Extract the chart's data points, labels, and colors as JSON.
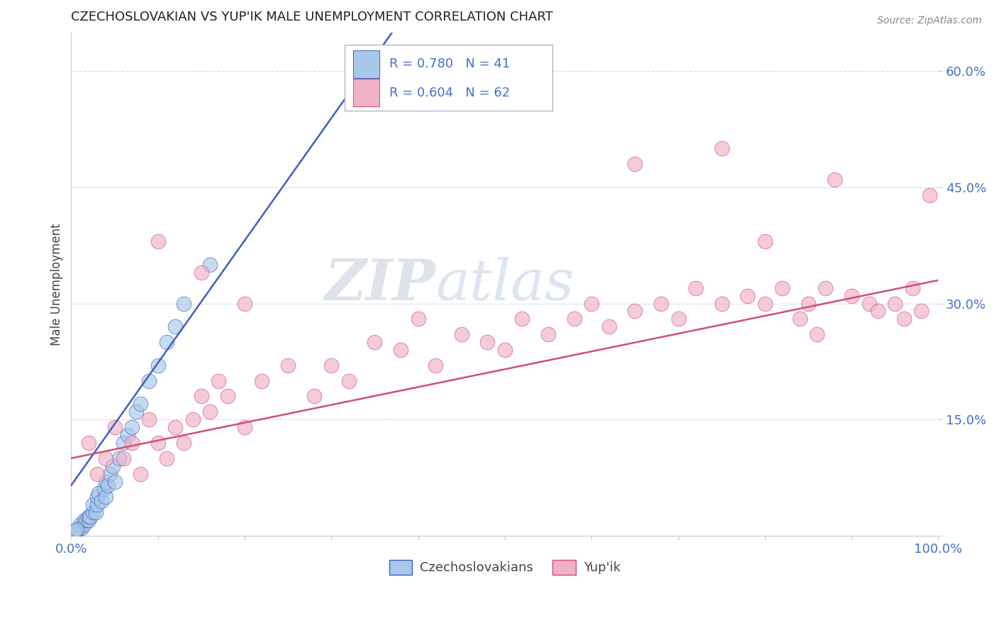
{
  "title": "CZECHOSLOVAKIAN VS YUP'IK MALE UNEMPLOYMENT CORRELATION CHART",
  "source": "Source: ZipAtlas.com",
  "ylabel": "Male Unemployment",
  "xlim": [
    0,
    1.0
  ],
  "ylim": [
    0,
    0.65
  ],
  "xticks": [
    0.0,
    0.1,
    0.2,
    0.3,
    0.4,
    0.5,
    0.6,
    0.7,
    0.8,
    0.9,
    1.0
  ],
  "xtick_labels": [
    "0.0%",
    "",
    "",
    "",
    "",
    "",
    "",
    "",
    "",
    "",
    "100.0%"
  ],
  "ytick_positions": [
    0.0,
    0.15,
    0.3,
    0.45,
    0.6
  ],
  "ytick_labels": [
    "",
    "15.0%",
    "30.0%",
    "45.0%",
    "60.0%"
  ],
  "legend_r_czech": "R = 0.780",
  "legend_n_czech": "N = 41",
  "legend_r_yupik": "R = 0.604",
  "legend_n_yupik": "N = 62",
  "czech_color": "#A8C8E8",
  "yupik_color": "#F0B0C8",
  "czech_line_color": "#4060C0",
  "yupik_line_color": "#D05070",
  "background_color": "#FFFFFF",
  "grid_color": "#C8D0E0",
  "czech_points": [
    [
      0.005,
      0.005
    ],
    [
      0.008,
      0.008
    ],
    [
      0.01,
      0.01
    ],
    [
      0.01,
      0.015
    ],
    [
      0.012,
      0.01
    ],
    [
      0.015,
      0.015
    ],
    [
      0.015,
      0.02
    ],
    [
      0.018,
      0.02
    ],
    [
      0.02,
      0.02
    ],
    [
      0.02,
      0.025
    ],
    [
      0.022,
      0.025
    ],
    [
      0.025,
      0.03
    ],
    [
      0.025,
      0.04
    ],
    [
      0.028,
      0.03
    ],
    [
      0.03,
      0.04
    ],
    [
      0.03,
      0.05
    ],
    [
      0.032,
      0.055
    ],
    [
      0.035,
      0.045
    ],
    [
      0.038,
      0.06
    ],
    [
      0.04,
      0.05
    ],
    [
      0.04,
      0.07
    ],
    [
      0.042,
      0.065
    ],
    [
      0.045,
      0.08
    ],
    [
      0.048,
      0.09
    ],
    [
      0.05,
      0.07
    ],
    [
      0.055,
      0.1
    ],
    [
      0.06,
      0.12
    ],
    [
      0.065,
      0.13
    ],
    [
      0.07,
      0.14
    ],
    [
      0.075,
      0.16
    ],
    [
      0.08,
      0.17
    ],
    [
      0.09,
      0.2
    ],
    [
      0.1,
      0.22
    ],
    [
      0.11,
      0.25
    ],
    [
      0.12,
      0.27
    ],
    [
      0.13,
      0.3
    ],
    [
      0.002,
      0.003
    ],
    [
      0.003,
      0.005
    ],
    [
      0.004,
      0.006
    ],
    [
      0.006,
      0.008
    ],
    [
      0.16,
      0.35
    ]
  ],
  "yupik_points": [
    [
      0.02,
      0.12
    ],
    [
      0.03,
      0.08
    ],
    [
      0.04,
      0.1
    ],
    [
      0.05,
      0.14
    ],
    [
      0.06,
      0.1
    ],
    [
      0.07,
      0.12
    ],
    [
      0.08,
      0.08
    ],
    [
      0.09,
      0.15
    ],
    [
      0.1,
      0.12
    ],
    [
      0.11,
      0.1
    ],
    [
      0.12,
      0.14
    ],
    [
      0.13,
      0.12
    ],
    [
      0.14,
      0.15
    ],
    [
      0.15,
      0.18
    ],
    [
      0.16,
      0.16
    ],
    [
      0.17,
      0.2
    ],
    [
      0.18,
      0.18
    ],
    [
      0.2,
      0.14
    ],
    [
      0.22,
      0.2
    ],
    [
      0.25,
      0.22
    ],
    [
      0.28,
      0.18
    ],
    [
      0.3,
      0.22
    ],
    [
      0.32,
      0.2
    ],
    [
      0.35,
      0.25
    ],
    [
      0.38,
      0.24
    ],
    [
      0.4,
      0.28
    ],
    [
      0.42,
      0.22
    ],
    [
      0.45,
      0.26
    ],
    [
      0.48,
      0.25
    ],
    [
      0.5,
      0.24
    ],
    [
      0.52,
      0.28
    ],
    [
      0.55,
      0.26
    ],
    [
      0.58,
      0.28
    ],
    [
      0.6,
      0.3
    ],
    [
      0.62,
      0.27
    ],
    [
      0.65,
      0.29
    ],
    [
      0.68,
      0.3
    ],
    [
      0.7,
      0.28
    ],
    [
      0.72,
      0.32
    ],
    [
      0.75,
      0.3
    ],
    [
      0.78,
      0.31
    ],
    [
      0.8,
      0.3
    ],
    [
      0.82,
      0.32
    ],
    [
      0.85,
      0.3
    ],
    [
      0.87,
      0.32
    ],
    [
      0.9,
      0.31
    ],
    [
      0.92,
      0.3
    ],
    [
      0.93,
      0.29
    ],
    [
      0.95,
      0.3
    ],
    [
      0.96,
      0.28
    ],
    [
      0.97,
      0.32
    ],
    [
      0.98,
      0.29
    ],
    [
      0.99,
      0.44
    ],
    [
      0.88,
      0.46
    ],
    [
      0.75,
      0.5
    ],
    [
      0.65,
      0.48
    ],
    [
      0.8,
      0.38
    ],
    [
      0.1,
      0.38
    ],
    [
      0.15,
      0.34
    ],
    [
      0.2,
      0.3
    ],
    [
      0.84,
      0.28
    ],
    [
      0.86,
      0.26
    ]
  ],
  "czech_line": [
    [
      0.0,
      0.065
    ],
    [
      0.37,
      0.65
    ]
  ],
  "yupik_line": [
    [
      0.0,
      0.1
    ],
    [
      1.0,
      0.33
    ]
  ]
}
